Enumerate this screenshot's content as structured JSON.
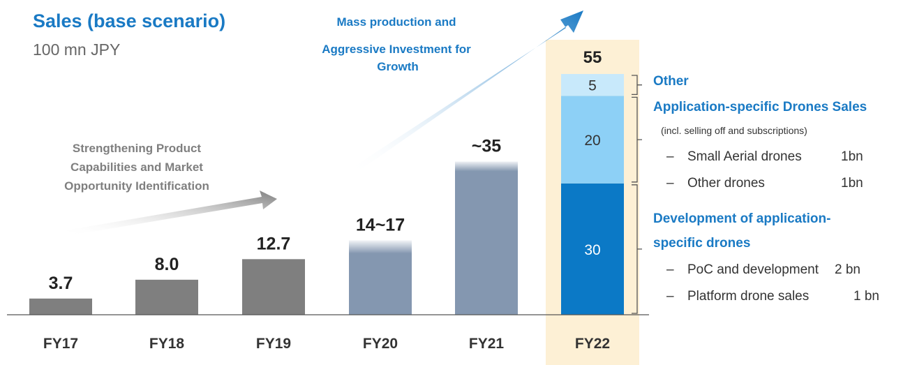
{
  "chart_data": {
    "type": "bar",
    "title": "Sales (base scenario)",
    "subtitle": "100 mn JPY",
    "categories": [
      "FY17",
      "FY18",
      "FY19",
      "FY20",
      "FY21",
      "FY22"
    ],
    "bars": [
      {
        "category": "FY17",
        "label": "3.7",
        "low": 3.7,
        "high": 3.7,
        "style": "actual"
      },
      {
        "category": "FY18",
        "label": "8.0",
        "low": 8.0,
        "high": 8.0,
        "style": "actual"
      },
      {
        "category": "FY19",
        "label": "12.7",
        "low": 12.7,
        "high": 12.7,
        "style": "actual"
      },
      {
        "category": "FY20",
        "label": "14~17",
        "low": 14,
        "high": 17,
        "style": "forecast"
      },
      {
        "category": "FY21",
        "label": "~35",
        "low": 35,
        "high": 35,
        "style": "forecast"
      }
    ],
    "stacked_bar": {
      "category": "FY22",
      "total_label": "55",
      "segments": [
        {
          "name": "Development of application-specific drones",
          "value": 30,
          "label": "30",
          "color": "#0b79c6"
        },
        {
          "name": "Application-specific Drones Sales",
          "value": 20,
          "label": "20",
          "color": "#8dd0f6"
        },
        {
          "name": "Other",
          "value": 5,
          "label": "5",
          "color": "#c8e9fb"
        }
      ]
    },
    "ylim": [
      0,
      55
    ],
    "colors": {
      "actual": "#7f7f7f",
      "forecast": "#8497b0",
      "highlight_band": "#fdf0d5",
      "accent": "#1a7ac4"
    }
  },
  "annotations": {
    "growth_arrow": [
      "Mass production and",
      "Aggressive Investment for",
      "Growth"
    ],
    "strengthening_arrow": [
      "Strengthening Product",
      "Capabilities and Market",
      "Opportunity Identification"
    ]
  },
  "legend": {
    "other": {
      "title": "Other"
    },
    "sales": {
      "title": "Application-specific Drones Sales",
      "note": "(incl. selling off and subscriptions)",
      "items": [
        {
          "dash": "–",
          "label": "Small Aerial drones",
          "value": "1bn"
        },
        {
          "dash": "–",
          "label": "Other drones",
          "value": "1bn"
        }
      ]
    },
    "development": {
      "title_lines": [
        "Development of application-",
        "specific drones"
      ],
      "items": [
        {
          "dash": "–",
          "label": "PoC and development",
          "value": "2 bn"
        },
        {
          "dash": "–",
          "label": "Platform drone sales",
          "value": "1 bn"
        }
      ]
    }
  }
}
